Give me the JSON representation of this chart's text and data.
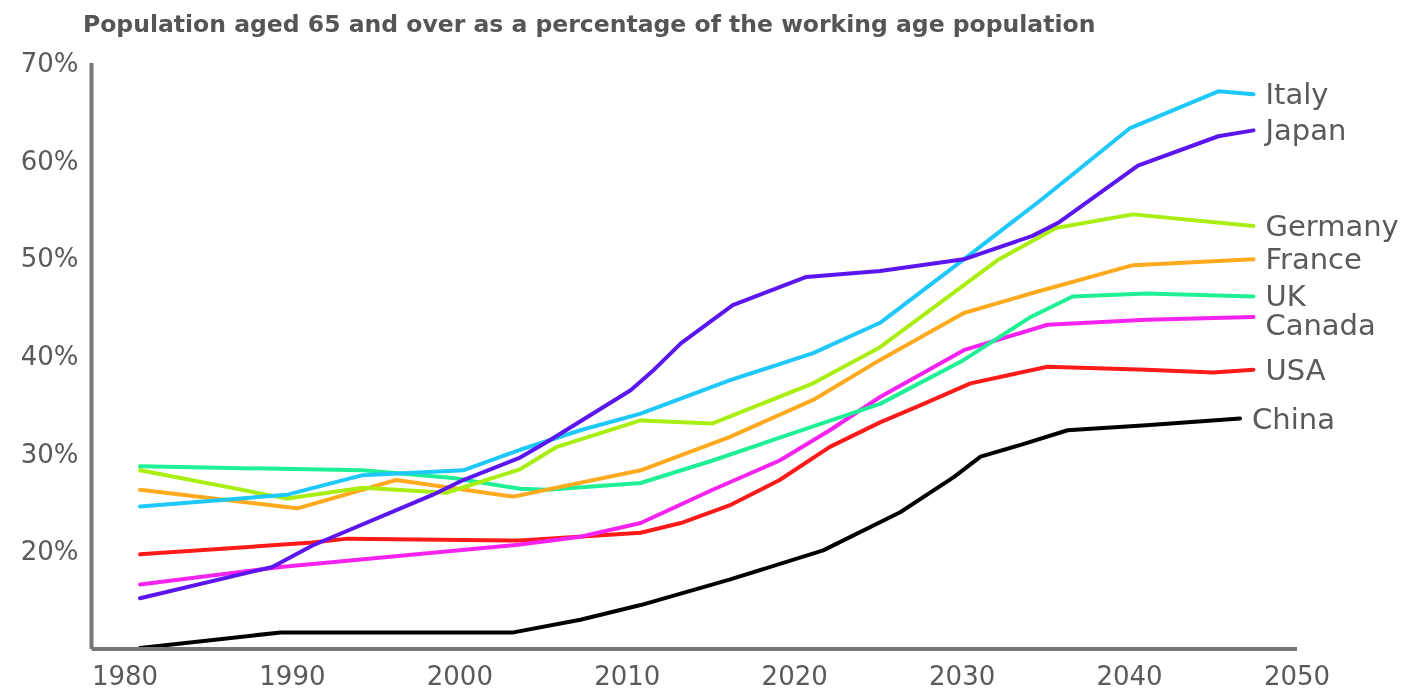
{
  "chart_data": {
    "type": "line",
    "title": "Population aged 65 and over as a percentage of the working age population",
    "xlim": [
      1978,
      2050
    ],
    "xticks": [
      1980,
      1990,
      2000,
      2010,
      2020,
      2030,
      2040,
      2050
    ],
    "ylim": [
      10,
      70
    ],
    "yticks": [
      {
        "value": 20,
        "label": "20%"
      },
      {
        "value": 30,
        "label": "30%"
      },
      {
        "value": 40,
        "label": "40%"
      },
      {
        "value": 50,
        "label": "50%"
      },
      {
        "value": 60,
        "label": "60%"
      },
      {
        "value": 70,
        "label": "70%"
      }
    ],
    "marker": "none",
    "series": [
      {
        "name": "China",
        "color": "#000000",
        "x": [
          1980.9,
          1989.3,
          2003.2,
          2007.2,
          2010.8,
          2016.1,
          2021.7,
          2026.3,
          2029.5,
          2031.1,
          2033.5,
          2036.3,
          2041,
          2046.6
        ],
        "values": [
          10.1,
          11.7,
          11.7,
          13.0,
          14.5,
          17.1,
          20.1,
          24.0,
          27.6,
          29.7,
          30.9,
          32.4,
          32.9,
          33.6
        ]
      },
      {
        "name": "USA",
        "color": "#ff1a1a",
        "x": [
          1980.9,
          1991.2,
          1993.3,
          2003.6,
          2010.8,
          2013.2,
          2016.1,
          2019.1,
          2022.1,
          2025.1,
          2027.7,
          2030.5,
          2035.1,
          2041,
          2045,
          2047.4
        ],
        "values": [
          19.7,
          20.9,
          21.3,
          21.1,
          21.9,
          22.9,
          24.7,
          27.3,
          30.7,
          33.2,
          35.1,
          37.2,
          38.9,
          38.6,
          38.3,
          38.6
        ]
      },
      {
        "name": "Canada",
        "color": "#f522f0",
        "x": [
          1980.9,
          1989.3,
          2003.6,
          2007.2,
          2010.8,
          2015.1,
          2019.1,
          2022.1,
          2025.1,
          2030.1,
          2035.1,
          2041,
          2047.4
        ],
        "values": [
          16.6,
          18.4,
          20.7,
          21.5,
          22.9,
          26.3,
          29.3,
          32.4,
          35.8,
          40.6,
          43.2,
          43.7,
          44.0
        ]
      },
      {
        "name": "UK",
        "color": "#1ff095",
        "x": [
          1980.9,
          1994.2,
          1999.6,
          2003.6,
          2005.2,
          2010.8,
          2015.1,
          2021.1,
          2025.1,
          2030.1,
          2034.1,
          2036.6,
          2041,
          2047.4
        ],
        "values": [
          28.7,
          28.3,
          27.5,
          26.4,
          26.3,
          27.0,
          29.3,
          32.8,
          35.1,
          39.6,
          44.0,
          46.1,
          46.4,
          46.1
        ]
      },
      {
        "name": "France",
        "color": "#ffaa1e",
        "x": [
          1980.9,
          1990.3,
          1996.2,
          2003.2,
          2010.8,
          2016.1,
          2021.1,
          2025.1,
          2030.1,
          2034.1,
          2040.2,
          2047.4
        ],
        "values": [
          26.3,
          24.4,
          27.3,
          25.6,
          28.3,
          31.7,
          35.5,
          39.6,
          44.4,
          46.4,
          49.3,
          49.9
        ]
      },
      {
        "name": "Germany",
        "color": "#aaee11",
        "x": [
          1980.9,
          1989.7,
          1994.2,
          1999.2,
          2003.6,
          2005.8,
          2010.8,
          2015.1,
          2021.1,
          2025.1,
          2032.1,
          2035.6,
          2040.2,
          2047.4
        ],
        "values": [
          28.3,
          25.4,
          26.5,
          26.0,
          28.4,
          30.7,
          33.4,
          33.1,
          37.2,
          40.9,
          49.8,
          53.1,
          54.5,
          53.3
        ]
      },
      {
        "name": "Italy",
        "color": "#1ec8fa",
        "x": [
          1980.9,
          1989.7,
          1994.2,
          2000.2,
          2003.6,
          2007.2,
          2010.8,
          2016.1,
          2021.1,
          2025.1,
          2030.1,
          2034.8,
          2040,
          2045.3,
          2047.4
        ],
        "values": [
          24.6,
          25.8,
          27.8,
          28.3,
          30.4,
          32.4,
          34.1,
          37.5,
          40.3,
          43.4,
          49.9,
          56.1,
          63.3,
          67.1,
          66.8
        ]
      },
      {
        "name": "Japan",
        "color": "#5b16f0",
        "x": [
          1980.9,
          1988.8,
          1991.2,
          1998.4,
          2000.2,
          2003.6,
          2005.2,
          2010.2,
          2011.6,
          2013.2,
          2016.3,
          2020.7,
          2025.1,
          2030.1,
          2034.2,
          2035.8,
          2040.5,
          2045.3,
          2047.4
        ],
        "values": [
          15.2,
          18.4,
          20.6,
          25.8,
          27.3,
          29.6,
          31.2,
          36.5,
          38.6,
          41.3,
          45.2,
          48.1,
          48.7,
          49.9,
          52.3,
          53.7,
          59.5,
          62.5,
          63.1
        ]
      }
    ]
  }
}
